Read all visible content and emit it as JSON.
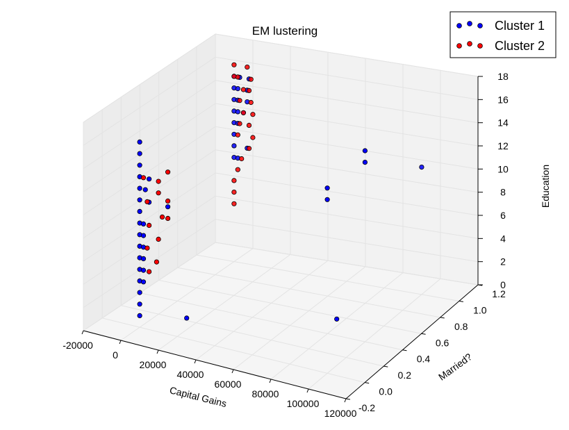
{
  "chart_data": {
    "type": "scatter3d",
    "title": "EM lustering",
    "xlabel": "Capital Gains",
    "ylabel": "Married?",
    "zlabel": "Education",
    "xlim": [
      -20000,
      120000
    ],
    "ylim": [
      -0.2,
      1.2
    ],
    "zlim": [
      0,
      18
    ],
    "xticks": [
      "-20000",
      "0",
      "20000",
      "40000",
      "60000",
      "80000",
      "100000",
      "120000"
    ],
    "yticks": [
      "-0.2",
      "0.0",
      "0.2",
      "0.4",
      "0.6",
      "0.8",
      "1.0",
      "1.2"
    ],
    "zticks": [
      "0",
      "2",
      "4",
      "6",
      "8",
      "10",
      "12",
      "14",
      "16",
      "18"
    ],
    "grid": true,
    "legend_position": "top-right",
    "series": [
      {
        "name": "Cluster 1",
        "color": "#0000ff",
        "points": [
          [
            0,
            0,
            1
          ],
          [
            0,
            0,
            2
          ],
          [
            0,
            0,
            3
          ],
          [
            0,
            0,
            4
          ],
          [
            0,
            0,
            5
          ],
          [
            0,
            0,
            6
          ],
          [
            0,
            0,
            7
          ],
          [
            0,
            0,
            8
          ],
          [
            0,
            0,
            9
          ],
          [
            0,
            0,
            10
          ],
          [
            0,
            0,
            11
          ],
          [
            0,
            0,
            12
          ],
          [
            0,
            0,
            13
          ],
          [
            0,
            0,
            14
          ],
          [
            0,
            0,
            15
          ],
          [
            0,
            0,
            16
          ],
          [
            2000,
            0,
            4
          ],
          [
            2000,
            0,
            5
          ],
          [
            2000,
            0,
            6
          ],
          [
            2000,
            0,
            7
          ],
          [
            2000,
            0,
            8
          ],
          [
            2000,
            0,
            9
          ],
          [
            5000,
            0,
            11
          ],
          [
            3000,
            0,
            12
          ],
          [
            5000,
            0,
            13
          ],
          [
            15000,
            0,
            11
          ],
          [
            0,
            1,
            9
          ],
          [
            0,
            1,
            10
          ],
          [
            0,
            1,
            11
          ],
          [
            0,
            1,
            12
          ],
          [
            0,
            1,
            13
          ],
          [
            0,
            1,
            14
          ],
          [
            0,
            1,
            15
          ],
          [
            0,
            1,
            16
          ],
          [
            2000,
            1,
            9
          ],
          [
            2000,
            1,
            12
          ],
          [
            2000,
            1,
            13
          ],
          [
            2000,
            1,
            14
          ],
          [
            2000,
            1,
            15
          ],
          [
            3000,
            1,
            16
          ],
          [
            7000,
            1,
            14
          ],
          [
            7000,
            1,
            15
          ],
          [
            8000,
            1,
            16
          ],
          [
            5000,
            1,
            13
          ],
          [
            7000,
            1,
            10
          ],
          [
            20000,
            0.1,
            1
          ],
          [
            100000,
            0.1,
            4
          ],
          [
            100000,
            1,
            11
          ],
          [
            100000,
            0,
            16
          ],
          [
            100000,
            0,
            15
          ],
          [
            100000,
            0.4,
            16.5
          ],
          [
            100000,
            0.4,
            15.5
          ]
        ]
      },
      {
        "name": "Cluster 2",
        "color": "#ff0000",
        "points": [
          [
            2000,
            0,
            13
          ],
          [
            4000,
            0,
            11
          ],
          [
            5000,
            0,
            9
          ],
          [
            4000,
            0,
            7
          ],
          [
            5000,
            0,
            5
          ],
          [
            10000,
            0,
            13
          ],
          [
            10000,
            0,
            12
          ],
          [
            12000,
            0,
            10
          ],
          [
            10000,
            0,
            8
          ],
          [
            9000,
            0,
            6
          ],
          [
            15000,
            0,
            14
          ],
          [
            15000,
            0,
            11.5
          ],
          [
            15000,
            0,
            10
          ],
          [
            0,
            1,
            5
          ],
          [
            0,
            1,
            6
          ],
          [
            0,
            1,
            7
          ],
          [
            2000,
            1,
            8
          ],
          [
            2000,
            1,
            11
          ],
          [
            3000,
            1,
            12
          ],
          [
            5000,
            1,
            13
          ],
          [
            3000,
            1,
            14
          ],
          [
            5000,
            1,
            15
          ],
          [
            2000,
            1,
            16
          ],
          [
            0,
            1,
            17
          ],
          [
            0,
            1,
            16
          ],
          [
            7000,
            1,
            17
          ],
          [
            9000,
            1,
            16
          ],
          [
            8000,
            1,
            15
          ],
          [
            8000,
            1,
            12
          ],
          [
            9000,
            1,
            14
          ],
          [
            10000,
            1,
            13
          ],
          [
            10000,
            1,
            11
          ],
          [
            8000,
            1,
            10
          ],
          [
            4000,
            1,
            9
          ]
        ]
      }
    ]
  }
}
